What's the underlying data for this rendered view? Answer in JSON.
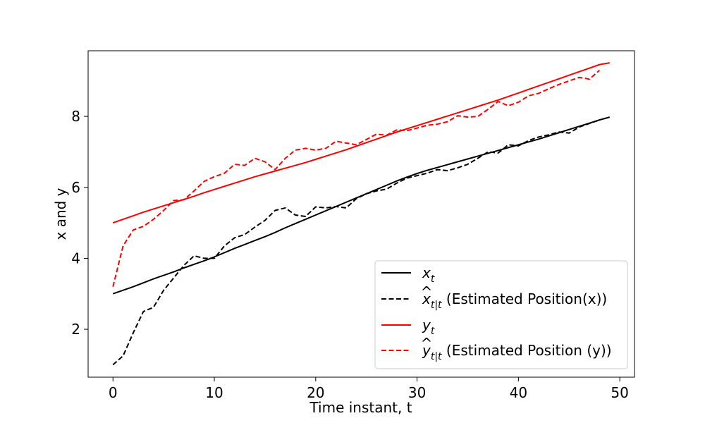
{
  "chart_data": {
    "type": "line",
    "title": "",
    "xlabel": "Time instant, t",
    "ylabel": "x and y",
    "xlim": [
      -2.45,
      51.45
    ],
    "ylim": [
      0.65,
      9.85
    ],
    "xticks": [
      0,
      10,
      20,
      30,
      40,
      50
    ],
    "yticks": [
      2,
      4,
      6,
      8
    ],
    "grid": false,
    "legend_position": "lower-right",
    "x": [
      0,
      1,
      2,
      3,
      4,
      5,
      6,
      7,
      8,
      9,
      10,
      11,
      12,
      13,
      14,
      15,
      16,
      17,
      18,
      19,
      20,
      21,
      22,
      23,
      24,
      25,
      26,
      27,
      28,
      29,
      30,
      31,
      32,
      33,
      34,
      35,
      36,
      37,
      38,
      39,
      40,
      41,
      42,
      43,
      44,
      45,
      46,
      47,
      48,
      49
    ],
    "series": [
      {
        "key": "x_t",
        "legend_main": "x",
        "legend_sub": "t",
        "legend_hat": false,
        "legend_rest": "",
        "color": "#000000",
        "dash": "solid",
        "values": [
          3.0,
          3.1,
          3.2,
          3.31,
          3.42,
          3.52,
          3.62,
          3.73,
          3.83,
          3.93,
          4.04,
          4.16,
          4.28,
          4.39,
          4.5,
          4.61,
          4.73,
          4.86,
          4.98,
          5.1,
          5.22,
          5.34,
          5.46,
          5.58,
          5.7,
          5.82,
          5.94,
          6.06,
          6.18,
          6.29,
          6.39,
          6.48,
          6.56,
          6.64,
          6.72,
          6.8,
          6.88,
          6.96,
          7.04,
          7.12,
          7.2,
          7.28,
          7.36,
          7.45,
          7.54,
          7.63,
          7.72,
          7.81,
          7.9,
          7.98
        ]
      },
      {
        "key": "x_hat",
        "legend_main": "x",
        "legend_sub": "t|t",
        "legend_hat": true,
        "legend_rest": " (Estimated Position(x))",
        "color": "#000000",
        "dash": "dashed",
        "values": [
          1.0,
          1.25,
          1.9,
          2.5,
          2.62,
          3.1,
          3.45,
          3.8,
          4.07,
          4.0,
          4.0,
          4.35,
          4.58,
          4.67,
          4.88,
          5.07,
          5.35,
          5.42,
          5.22,
          5.18,
          5.45,
          5.42,
          5.46,
          5.42,
          5.68,
          5.82,
          5.9,
          5.95,
          6.12,
          6.26,
          6.33,
          6.4,
          6.5,
          6.47,
          6.55,
          6.65,
          6.82,
          7.0,
          6.97,
          7.2,
          7.17,
          7.32,
          7.42,
          7.48,
          7.56,
          7.53,
          7.7,
          7.8,
          7.9,
          null
        ]
      },
      {
        "key": "y_t",
        "legend_main": "y",
        "legend_sub": "t",
        "legend_hat": false,
        "legend_rest": "",
        "color": "#ff0000",
        "dash": "solid",
        "values": [
          5.0,
          5.1,
          5.2,
          5.3,
          5.39,
          5.48,
          5.57,
          5.66,
          5.75,
          5.85,
          5.94,
          6.03,
          6.12,
          6.21,
          6.3,
          6.38,
          6.46,
          6.54,
          6.62,
          6.7,
          6.79,
          6.88,
          6.97,
          7.06,
          7.16,
          7.26,
          7.36,
          7.46,
          7.56,
          7.65,
          7.74,
          7.83,
          7.92,
          8.01,
          8.1,
          8.19,
          8.28,
          8.37,
          8.46,
          8.56,
          8.66,
          8.76,
          8.86,
          8.96,
          9.06,
          9.16,
          9.26,
          9.36,
          9.46,
          9.51
        ]
      },
      {
        "key": "y_hat",
        "legend_main": "y",
        "legend_sub": "t|t",
        "legend_hat": true,
        "legend_rest": " (Estimated Position (y))",
        "color": "#ff0000",
        "dash": "dashed",
        "values": [
          3.2,
          4.35,
          4.8,
          4.9,
          5.1,
          5.35,
          5.63,
          5.65,
          5.9,
          6.17,
          6.3,
          6.4,
          6.65,
          6.62,
          6.82,
          6.72,
          6.5,
          6.82,
          7.05,
          7.1,
          7.05,
          7.1,
          7.3,
          7.25,
          7.2,
          7.35,
          7.5,
          7.47,
          7.62,
          7.6,
          7.67,
          7.75,
          7.78,
          7.85,
          8.02,
          7.98,
          8.0,
          8.2,
          8.42,
          8.3,
          8.4,
          8.58,
          8.65,
          8.78,
          8.9,
          9.0,
          9.1,
          9.05,
          9.3,
          null
        ]
      }
    ]
  }
}
